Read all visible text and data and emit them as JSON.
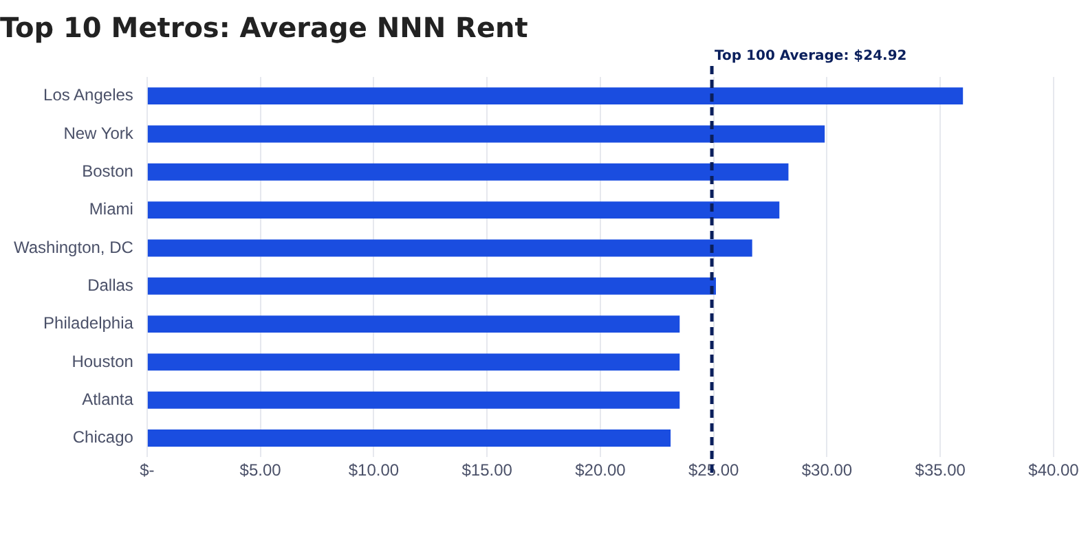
{
  "chart_data": {
    "type": "bar",
    "orientation": "horizontal",
    "title": "Top 10 Metros: Average NNN Rent",
    "categories": [
      "Los Angeles",
      "New York",
      "Boston",
      "Miami",
      "Washington, DC",
      "Dallas",
      "Philadelphia",
      "Houston",
      "Atlanta",
      "Chicago"
    ],
    "values": [
      36.0,
      29.9,
      28.3,
      27.9,
      26.7,
      25.1,
      23.5,
      23.5,
      23.5,
      23.1
    ],
    "color": "#1a4de0",
    "xlim": [
      0,
      40
    ],
    "xticks": [
      {
        "value": 0,
        "label": "$-"
      },
      {
        "value": 5,
        "label": "$5.00"
      },
      {
        "value": 10,
        "label": "$10.00"
      },
      {
        "value": 15,
        "label": "$15.00"
      },
      {
        "value": 20,
        "label": "$20.00"
      },
      {
        "value": 25,
        "label": "$25.00"
      },
      {
        "value": 30,
        "label": "$30.00"
      },
      {
        "value": 35,
        "label": "$35.00"
      },
      {
        "value": 40,
        "label": "$40.00"
      }
    ],
    "grid": "x",
    "legend": false,
    "ref_lines": [
      {
        "axis": "x",
        "value": 24.92,
        "label": "Top 100 Average: $24.92",
        "color": "#0a1f5c",
        "line_style": "dashed"
      }
    ]
  }
}
